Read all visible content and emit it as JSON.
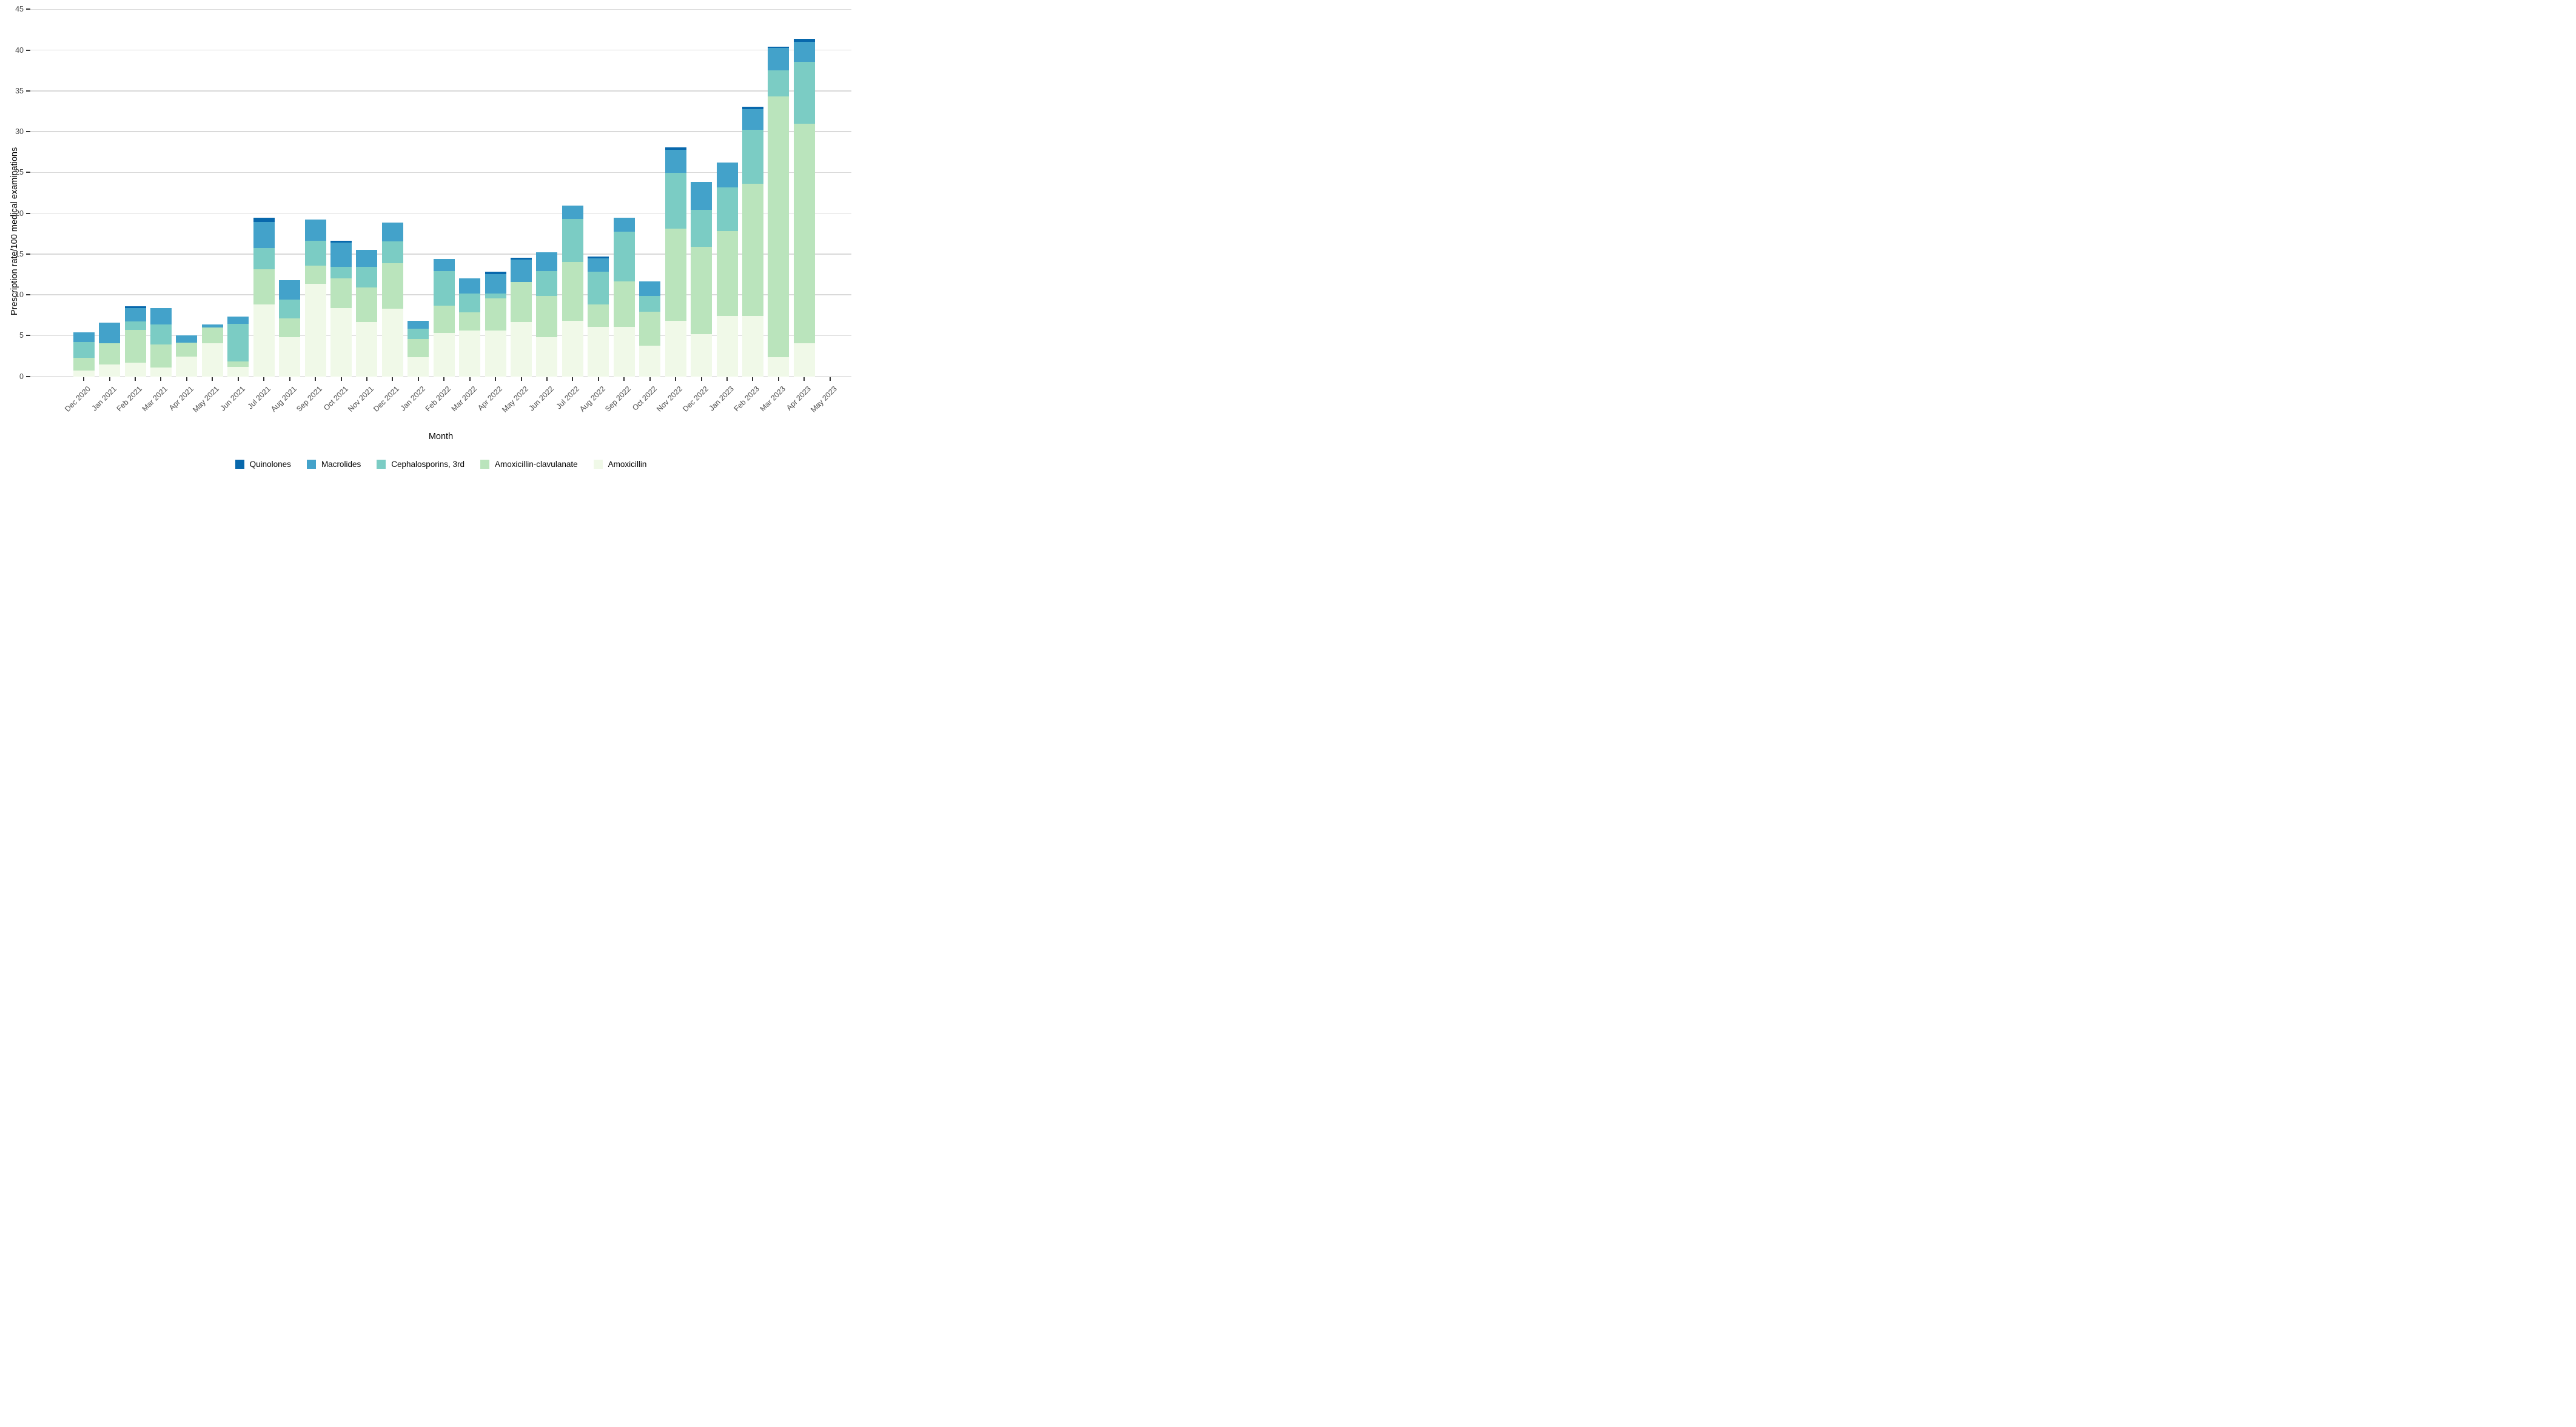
{
  "chart_data": {
    "type": "bar",
    "stacked": true,
    "title": "",
    "xlabel": "Month",
    "ylabel": "Prescription rate/100 medical examinations",
    "ylim": [
      0,
      45
    ],
    "ytick_step": 5,
    "ytick_labels": [
      "0",
      "5",
      "10",
      "15",
      "20",
      "25",
      "30",
      "35",
      "40",
      "45"
    ],
    "grid": "horizontal-major-only",
    "legend_position": "bottom",
    "categories": [
      "Dec 2020",
      "Jan 2021",
      "Feb 2021",
      "Mar 2021",
      "Apr 2021",
      "May 2021",
      "Jun 2021",
      "Jul 2021",
      "Aug 2021",
      "Sep 2021",
      "Oct 2021",
      "Nov 2021",
      "Dec 2021",
      "Jan 2022",
      "Feb 2022",
      "Mar 2022",
      "Apr 2022",
      "May 2022",
      "Jun 2022",
      "Jul 2022",
      "Aug 2022",
      "Sep 2022",
      "Oct 2022",
      "Nov 2022",
      "Dec 2022",
      "Jan 2023",
      "Feb 2023",
      "Mar 2023",
      "Apr 2023",
      "May 2023"
    ],
    "series": [
      {
        "name": "Amoxicillin",
        "color": "#f0f9e8",
        "values": [
          0.75,
          1.5,
          1.7,
          1.1,
          2.45,
          4.05,
          1.2,
          8.8,
          4.8,
          11.35,
          8.4,
          6.7,
          8.3,
          2.35,
          5.3,
          5.65,
          5.65,
          6.7,
          4.8,
          6.8,
          6.05,
          6.1,
          3.75,
          6.8,
          5.2,
          7.4,
          7.4,
          2.35,
          4.05,
          0
        ]
      },
      {
        "name": "Amoxicillin-clavulanate",
        "color": "#bae4bc",
        "values": [
          1.5,
          2.6,
          4.0,
          2.85,
          1.7,
          1.95,
          0.65,
          4.3,
          2.3,
          2.25,
          3.6,
          4.2,
          5.55,
          2.2,
          3.4,
          2.2,
          3.95,
          4.85,
          5.1,
          7.2,
          2.8,
          5.55,
          4.2,
          11.3,
          10.7,
          10.45,
          16.2,
          31.95,
          26.9,
          0
        ]
      },
      {
        "name": "Cephalosporins, 3rd",
        "color": "#7bccc4",
        "values": [
          1.95,
          0,
          1.05,
          2.45,
          0,
          0,
          4.6,
          2.6,
          2.35,
          3.0,
          1.45,
          2.55,
          2.7,
          1.3,
          4.2,
          2.3,
          0.55,
          0,
          3.0,
          5.3,
          4.0,
          6.1,
          1.95,
          6.85,
          4.5,
          5.35,
          6.65,
          3.2,
          7.6,
          0
        ]
      },
      {
        "name": "Macrolides",
        "color": "#43a2ca",
        "values": [
          1.2,
          2.5,
          1.6,
          2.0,
          0.85,
          0.4,
          0.85,
          3.2,
          2.35,
          2.6,
          2.95,
          2.05,
          2.3,
          0.95,
          1.5,
          1.9,
          2.4,
          2.8,
          2.3,
          1.65,
          1.6,
          1.7,
          1.75,
          2.85,
          3.45,
          3.0,
          2.5,
          2.75,
          2.45,
          0
        ]
      },
      {
        "name": "Quinolones",
        "color": "#0868ac",
        "values": [
          0,
          0,
          0.25,
          0,
          0,
          0,
          0,
          0.55,
          0,
          0,
          0.2,
          0,
          0,
          0,
          0,
          0,
          0.3,
          0.2,
          0,
          0,
          0.25,
          0,
          0,
          0.25,
          0,
          0,
          0.3,
          0.2,
          0.4,
          0
        ]
      }
    ],
    "legend_order": [
      "Quinolones",
      "Macrolides",
      "Cephalosporins, 3rd",
      "Amoxicillin-clavulanate",
      "Amoxicillin"
    ],
    "legend_colors": {
      "Quinolones": "#0868ac",
      "Macrolides": "#43a2ca",
      "Cephalosporins, 3rd": "#7bccc4",
      "Amoxicillin-clavulanate": "#bae4bc",
      "Amoxicillin": "#f0f9e8"
    },
    "colors": {
      "gridline": "#d9d9d9",
      "tick": "#333333",
      "tick_label": "#4d4d4d",
      "background": "#ffffff"
    }
  }
}
